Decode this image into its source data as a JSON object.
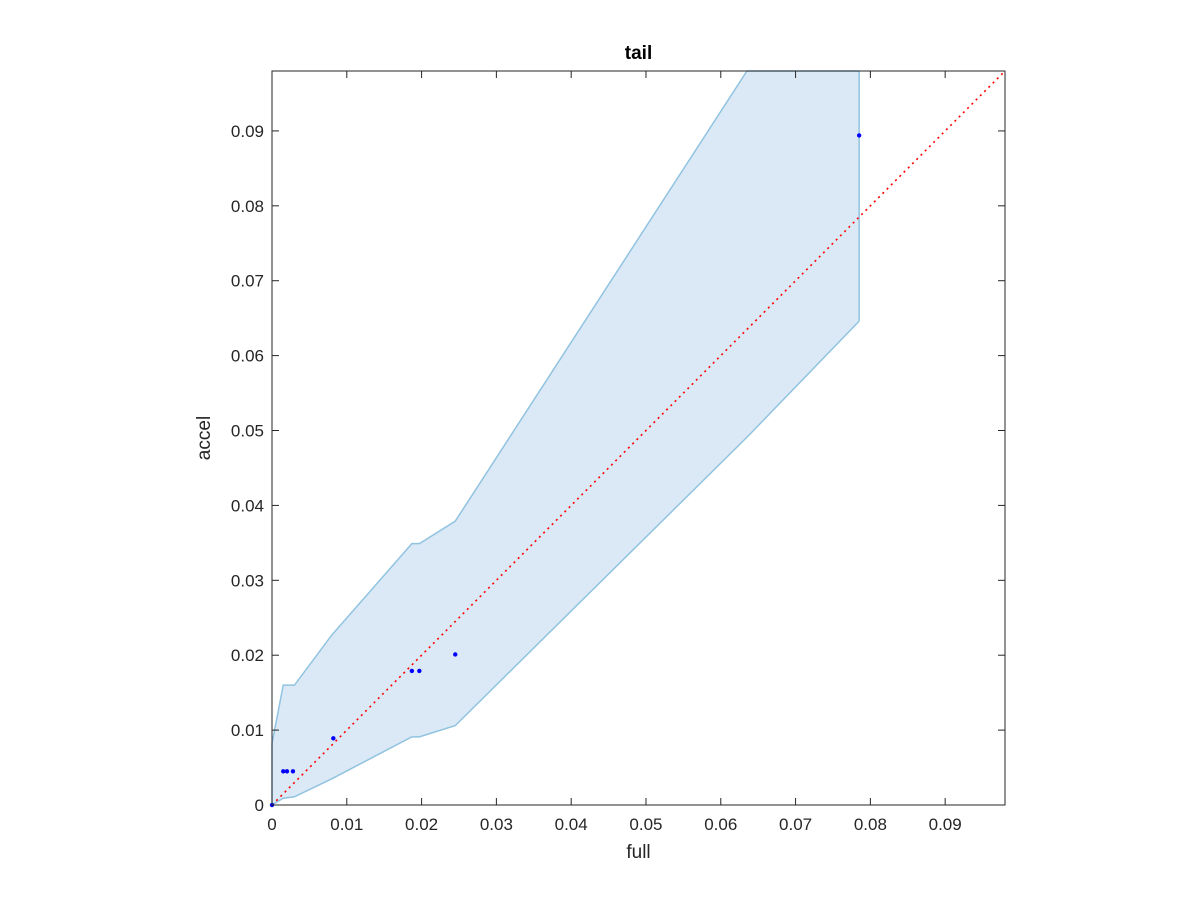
{
  "chart_data": {
    "type": "scatter",
    "title": "tail",
    "xlabel": "full",
    "ylabel": "accel",
    "xlim": [
      0,
      0.098
    ],
    "ylim": [
      0,
      0.098
    ],
    "xticks": [
      0,
      0.01,
      0.02,
      0.03,
      0.04,
      0.05,
      0.06,
      0.07,
      0.08,
      0.09
    ],
    "xtick_labels": [
      "0",
      "0.01",
      "0.02",
      "0.03",
      "0.04",
      "0.05",
      "0.06",
      "0.07",
      "0.08",
      "0.09"
    ],
    "yticks": [
      0,
      0.01,
      0.02,
      0.03,
      0.04,
      0.05,
      0.06,
      0.07,
      0.08,
      0.09
    ],
    "ytick_labels": [
      "0",
      "0.01",
      "0.02",
      "0.03",
      "0.04",
      "0.05",
      "0.06",
      "0.07",
      "0.08",
      "0.09"
    ],
    "grid": false,
    "box": true,
    "points": {
      "color": "#0000ff",
      "x": [
        0,
        0.0015,
        0.002,
        0.0028,
        0.0082,
        0.0187,
        0.0197,
        0.0245,
        0.0785
      ],
      "y": [
        0,
        0.0045,
        0.0045,
        0.0045,
        0.0089,
        0.0179,
        0.0179,
        0.0201,
        0.0894
      ]
    },
    "band": {
      "fill_color": "#dae9f5",
      "line_color": "#91c3e1",
      "x": [
        0,
        0.0015,
        0.003,
        0.008,
        0.0187,
        0.0197,
        0.0245,
        0.0635,
        0.0785
      ],
      "upper": [
        0.0082,
        0.016,
        0.016,
        0.0227,
        0.0349,
        0.0349,
        0.0379,
        0.098,
        0.098
      ],
      "lower": [
        0,
        0.0009,
        0.0011,
        0.0035,
        0.0091,
        0.0091,
        0.0106,
        0.0491,
        0.0646
      ]
    },
    "reference_line": {
      "style": "dotted",
      "color": "#ff0000",
      "x": [
        0,
        0.098
      ],
      "y": [
        0,
        0.098
      ]
    }
  }
}
